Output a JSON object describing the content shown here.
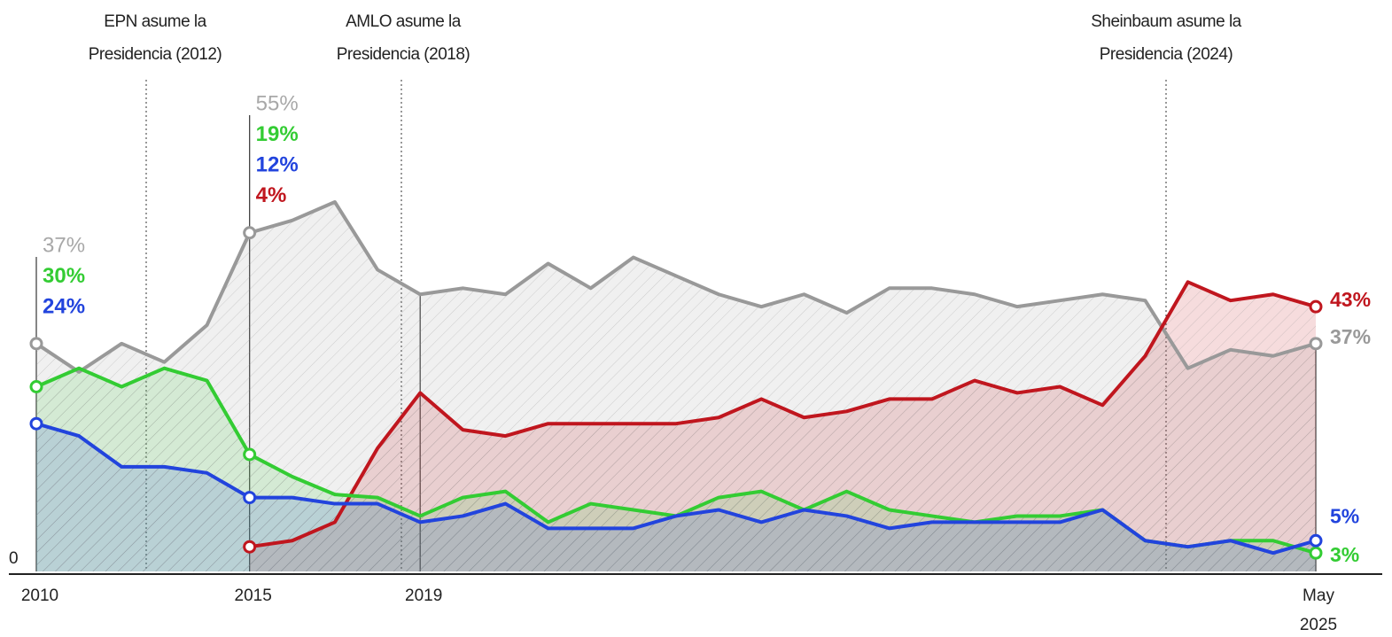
{
  "chart_data": {
    "type": "line",
    "categories": [
      "2010",
      null,
      null,
      null,
      null,
      "2015",
      null,
      null,
      null,
      "2019",
      null,
      null,
      null,
      null,
      null,
      null,
      null,
      null,
      null,
      null,
      null,
      null,
      null,
      null,
      null,
      null,
      null,
      null,
      null,
      null,
      "May 2025"
    ],
    "series": [
      {
        "color": "#999999",
        "values": [
          37,
          32.4,
          37,
          34,
          40,
          55,
          57,
          60,
          49,
          45,
          46,
          45,
          50,
          46,
          51,
          48,
          45,
          43,
          45,
          42,
          46,
          46,
          45,
          43,
          44,
          45,
          44,
          33,
          36,
          35,
          37
        ],
        "value_labels": [
          "37%",
          null,
          null,
          null,
          null,
          "55%",
          null,
          null,
          null,
          null,
          null,
          null,
          null,
          null,
          null,
          null,
          null,
          null,
          null,
          null,
          null,
          null,
          null,
          null,
          null,
          null,
          null,
          null,
          null,
          null,
          "37%"
        ]
      },
      {
        "color": "#33cc33",
        "values": [
          30,
          33,
          30,
          33,
          31,
          19,
          15.4,
          12.5,
          12,
          9,
          12,
          13,
          8,
          11,
          10,
          9,
          12,
          13,
          10,
          13,
          10,
          9,
          8,
          9,
          9,
          10,
          5,
          4,
          5,
          5,
          3
        ],
        "value_labels": [
          "30%",
          null,
          null,
          null,
          null,
          "19%",
          null,
          null,
          null,
          null,
          null,
          null,
          null,
          null,
          null,
          null,
          null,
          null,
          null,
          null,
          null,
          null,
          null,
          null,
          null,
          null,
          null,
          null,
          null,
          null,
          "3%"
        ]
      },
      {
        "color": "#2244dd",
        "values": [
          24,
          22,
          17,
          17,
          16,
          12,
          12,
          11,
          11,
          8,
          9,
          11,
          7,
          7,
          7,
          9,
          10,
          8,
          10,
          9,
          7,
          8,
          8,
          8,
          8,
          10,
          5,
          4,
          5,
          3,
          5
        ],
        "value_labels": [
          "24%",
          null,
          null,
          null,
          null,
          "12%",
          null,
          null,
          null,
          null,
          null,
          null,
          null,
          null,
          null,
          null,
          null,
          null,
          null,
          null,
          null,
          null,
          null,
          null,
          null,
          null,
          null,
          null,
          null,
          null,
          "5%"
        ]
      },
      {
        "color": "#c0161e",
        "values": [
          null,
          null,
          null,
          null,
          null,
          4,
          5,
          8,
          20,
          29,
          23,
          22,
          24,
          24,
          24,
          24,
          25,
          28,
          25,
          26,
          28,
          28,
          31,
          29,
          30,
          27,
          35,
          47,
          44,
          45,
          43
        ],
        "value_labels": [
          null,
          null,
          null,
          null,
          null,
          "4%",
          null,
          null,
          null,
          null,
          null,
          null,
          null,
          null,
          null,
          null,
          null,
          null,
          null,
          null,
          null,
          null,
          null,
          null,
          null,
          null,
          null,
          null,
          null,
          null,
          "43%"
        ]
      }
    ],
    "ylim": [
      0,
      90
    ],
    "yticks": [
      0
    ],
    "annotations": [
      {
        "lines": [
          "EPN asume la",
          "Presidencia (2012)"
        ]
      },
      {
        "lines": [
          "AMLO asume la",
          "Presidencia (2018)"
        ]
      },
      {
        "lines": [
          "Sheinbaum asume la",
          "Presidencia (2024)"
        ]
      }
    ]
  }
}
